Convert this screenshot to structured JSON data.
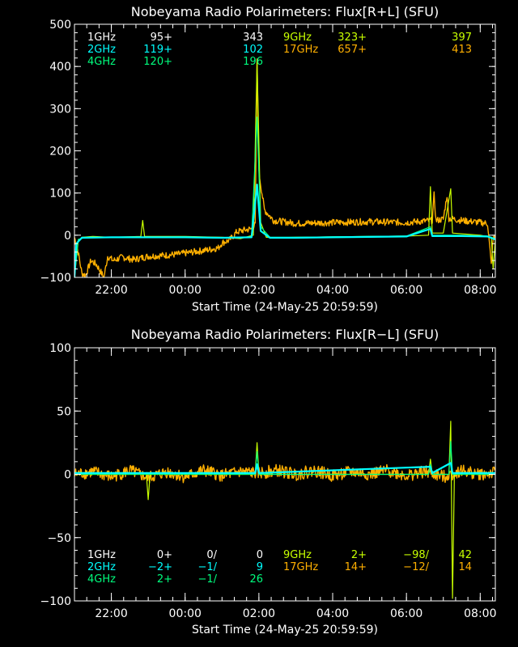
{
  "colors": {
    "background": "#000000",
    "axes": "#ffffff",
    "1GHz": "#ffffff",
    "2GHz": "#00ffff",
    "4GHz": "#00ff7f",
    "9GHz": "#c8ff00",
    "17GHz": "#ffb000"
  },
  "chart_data": [
    {
      "type": "line",
      "title": "Nobeyama Radio Polarimeters: Flux[R+L] (SFU)",
      "xlabel": "Start Time (24-May-25 20:59:59)",
      "ylabel": "",
      "ylim": [
        -100,
        500
      ],
      "yticks": [
        -100,
        0,
        100,
        200,
        300,
        400,
        500
      ],
      "xlim_hours": [
        21.0,
        32.41
      ],
      "xtick_labels": [
        "22:00",
        "00:00",
        "02:00",
        "04:00",
        "06:00",
        "08:00"
      ],
      "grid": false,
      "legend": [
        {
          "band": "1GHz",
          "a": "95+",
          "b": "",
          "c": "343"
        },
        {
          "band": "2GHz",
          "a": "119+",
          "b": "",
          "c": "102"
        },
        {
          "band": "4GHz",
          "a": "120+",
          "b": "",
          "c": "196"
        },
        {
          "band": "9GHz",
          "a": "323+",
          "b": "",
          "c": "397"
        },
        {
          "band": "17GHz",
          "a": "657+",
          "b": "",
          "c": "413"
        }
      ],
      "series": [
        {
          "band": "17GHz",
          "points": [
            [
              21.0,
              -5
            ],
            [
              21.1,
              -40
            ],
            [
              21.2,
              -90
            ],
            [
              21.3,
              -95
            ],
            [
              21.45,
              -60
            ],
            [
              21.6,
              -70
            ],
            [
              21.8,
              -100
            ],
            [
              21.9,
              -50
            ],
            [
              22.05,
              -60
            ],
            [
              22.3,
              -52
            ],
            [
              22.6,
              -58
            ],
            [
              23.0,
              -50
            ],
            [
              23.4,
              -48
            ],
            [
              23.8,
              -45
            ],
            [
              24.2,
              -40
            ],
            [
              24.6,
              -35
            ],
            [
              24.9,
              -30
            ],
            [
              25.0,
              -18
            ],
            [
              25.2,
              -12
            ],
            [
              25.4,
              8
            ],
            [
              25.6,
              12
            ],
            [
              25.8,
              15
            ],
            [
              25.9,
              25
            ],
            [
              25.95,
              412
            ],
            [
              26.0,
              150
            ],
            [
              26.15,
              60
            ],
            [
              26.4,
              35
            ],
            [
              27.0,
              28
            ],
            [
              28.0,
              30
            ],
            [
              29.0,
              32
            ],
            [
              30.0,
              30
            ],
            [
              30.7,
              35
            ],
            [
              30.75,
              95
            ],
            [
              30.8,
              35
            ],
            [
              31.0,
              38
            ],
            [
              31.1,
              95
            ],
            [
              31.15,
              40
            ],
            [
              31.5,
              35
            ],
            [
              32.0,
              30
            ],
            [
              32.2,
              28
            ],
            [
              32.3,
              -70
            ],
            [
              32.35,
              -10
            ],
            [
              32.41,
              0
            ]
          ]
        },
        {
          "band": "9GHz",
          "points": [
            [
              21.0,
              -100
            ],
            [
              21.1,
              -15
            ],
            [
              21.2,
              -5
            ],
            [
              21.5,
              -3
            ],
            [
              22.0,
              -5
            ],
            [
              22.8,
              -3
            ],
            [
              22.85,
              35
            ],
            [
              22.9,
              -3
            ],
            [
              24.0,
              -3
            ],
            [
              25.0,
              -5
            ],
            [
              25.5,
              -8
            ],
            [
              25.85,
              0
            ],
            [
              25.95,
              410
            ],
            [
              26.05,
              30
            ],
            [
              26.2,
              -5
            ],
            [
              26.5,
              -6
            ],
            [
              27.0,
              -5
            ],
            [
              28.0,
              -4
            ],
            [
              29.0,
              -3
            ],
            [
              30.0,
              -2
            ],
            [
              30.6,
              0
            ],
            [
              30.65,
              115
            ],
            [
              30.7,
              5
            ],
            [
              31.0,
              5
            ],
            [
              31.2,
              110
            ],
            [
              31.25,
              5
            ],
            [
              32.0,
              0
            ],
            [
              32.3,
              -5
            ],
            [
              32.35,
              -80
            ],
            [
              32.41,
              -10
            ]
          ]
        },
        {
          "band": "4GHz",
          "points": [
            [
              21.0,
              -100
            ],
            [
              21.1,
              -10
            ],
            [
              21.3,
              -5
            ],
            [
              22.0,
              -5
            ],
            [
              23.0,
              -5
            ],
            [
              24.0,
              -4
            ],
            [
              25.0,
              -6
            ],
            [
              25.8,
              -4
            ],
            [
              25.95,
              280
            ],
            [
              26.05,
              20
            ],
            [
              26.3,
              -5
            ],
            [
              27.0,
              -5
            ],
            [
              28.0,
              -4
            ],
            [
              29.0,
              -3
            ],
            [
              30.0,
              -2
            ],
            [
              30.65,
              20
            ],
            [
              30.7,
              0
            ],
            [
              31.5,
              0
            ],
            [
              32.2,
              -2
            ],
            [
              32.41,
              -8
            ]
          ]
        },
        {
          "band": "2GHz",
          "points": [
            [
              21.0,
              -100
            ],
            [
              21.05,
              -20
            ],
            [
              21.2,
              -6
            ],
            [
              22.0,
              -5
            ],
            [
              23.0,
              -5
            ],
            [
              24.0,
              -5
            ],
            [
              25.0,
              -6
            ],
            [
              25.8,
              -5
            ],
            [
              25.95,
              120
            ],
            [
              26.05,
              10
            ],
            [
              26.3,
              -6
            ],
            [
              27.0,
              -6
            ],
            [
              28.0,
              -5
            ],
            [
              29.0,
              -4
            ],
            [
              30.0,
              -3
            ],
            [
              30.65,
              15
            ],
            [
              30.7,
              -2
            ],
            [
              31.5,
              -2
            ],
            [
              32.2,
              -3
            ],
            [
              32.41,
              -10
            ]
          ]
        }
      ]
    },
    {
      "type": "line",
      "title": "Nobeyama Radio Polarimeters: Flux[R−L] (SFU)",
      "xlabel": "Start Time (24-May-25 20:59:59)",
      "ylabel": "",
      "ylim": [
        -100,
        100
      ],
      "yticks": [
        -100,
        -50,
        0,
        50,
        100
      ],
      "xlim_hours": [
        21.0,
        32.41
      ],
      "xtick_labels": [
        "22:00",
        "00:00",
        "02:00",
        "04:00",
        "06:00",
        "08:00"
      ],
      "grid": false,
      "legend": [
        {
          "band": "1GHz",
          "a": "0+",
          "b": "0/",
          "c": "0"
        },
        {
          "band": "2GHz",
          "a": "−2+",
          "b": "−1/",
          "c": "9"
        },
        {
          "band": "4GHz",
          "a": "2+",
          "b": "−1/",
          "c": "26"
        },
        {
          "band": "9GHz",
          "a": "2+",
          "b": "−98/",
          "c": "42"
        },
        {
          "band": "17GHz",
          "a": "14+",
          "b": "−12/",
          "c": "14"
        }
      ],
      "series": [
        {
          "band": "17GHz",
          "points": [
            [
              21.0,
              0
            ],
            [
              21.5,
              2
            ],
            [
              22.0,
              -2
            ],
            [
              22.5,
              3
            ],
            [
              23.0,
              -3
            ],
            [
              23.5,
              2
            ],
            [
              24.0,
              -2
            ],
            [
              24.5,
              3
            ],
            [
              25.0,
              -1
            ],
            [
              25.5,
              2
            ],
            [
              26.0,
              1
            ],
            [
              26.5,
              3
            ],
            [
              27.0,
              0
            ],
            [
              27.5,
              3
            ],
            [
              28.0,
              -1
            ],
            [
              28.5,
              2
            ],
            [
              29.0,
              0
            ],
            [
              29.5,
              3
            ],
            [
              30.0,
              -1
            ],
            [
              30.5,
              2
            ],
            [
              31.0,
              -2
            ],
            [
              31.5,
              3
            ],
            [
              32.0,
              0
            ],
            [
              32.41,
              1
            ]
          ]
        },
        {
          "band": "9GHz",
          "points": [
            [
              21.0,
              0
            ],
            [
              22.95,
              0
            ],
            [
              23.0,
              -20
            ],
            [
              23.05,
              0
            ],
            [
              25.9,
              0
            ],
            [
              25.95,
              25
            ],
            [
              26.0,
              0
            ],
            [
              30.6,
              0
            ],
            [
              30.65,
              12
            ],
            [
              30.7,
              0
            ],
            [
              31.15,
              0
            ],
            [
              31.2,
              42
            ],
            [
              31.25,
              -98
            ],
            [
              31.3,
              0
            ],
            [
              32.41,
              0
            ]
          ]
        },
        {
          "band": "4GHz",
          "points": [
            [
              21.0,
              0
            ],
            [
              25.9,
              0
            ],
            [
              25.95,
              18
            ],
            [
              26.0,
              0
            ],
            [
              30.6,
              0
            ],
            [
              30.65,
              8
            ],
            [
              30.7,
              0
            ],
            [
              31.15,
              0
            ],
            [
              31.2,
              26
            ],
            [
              31.25,
              0
            ],
            [
              32.41,
              0
            ]
          ]
        },
        {
          "band": "2GHz",
          "points": [
            [
              21.0,
              1
            ],
            [
              25.9,
              1
            ],
            [
              25.95,
              8
            ],
            [
              26.0,
              1
            ],
            [
              30.65,
              6
            ],
            [
              30.7,
              1
            ],
            [
              31.2,
              9
            ],
            [
              31.25,
              1
            ],
            [
              32.41,
              1
            ]
          ]
        }
      ]
    }
  ]
}
